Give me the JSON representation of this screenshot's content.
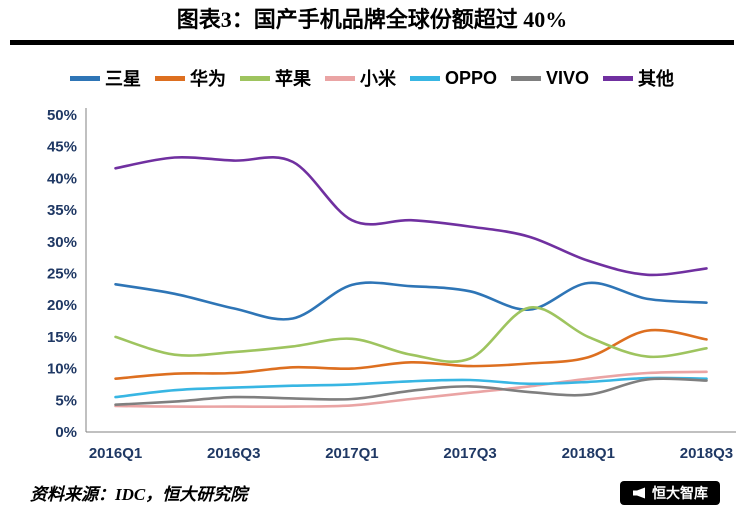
{
  "header": {
    "title": "图表3：国产手机品牌全球份额超过 40%"
  },
  "chart_data": {
    "type": "line",
    "title": "图表3：国产手机品牌全球份额超过 40%",
    "x": [
      "2016Q1",
      "2016Q2",
      "2016Q3",
      "2016Q4",
      "2017Q1",
      "2017Q2",
      "2017Q3",
      "2017Q4",
      "2018Q1",
      "2018Q2",
      "2018Q3"
    ],
    "x_tick_step": 2,
    "ylim": [
      0,
      50
    ],
    "y_tick_step": 5,
    "y_tick_suffix": "%",
    "grid": false,
    "legend_position": "top",
    "axis_label_color": "#1F3864",
    "series": [
      {
        "key": "samsung",
        "name": "三星",
        "color": "#2E75B6",
        "values": [
          23.3,
          21.8,
          19.5,
          17.9,
          23.2,
          23.0,
          22.2,
          19.3,
          23.5,
          21.0,
          20.4
        ]
      },
      {
        "key": "huawei",
        "name": "华为",
        "color": "#DD6F20",
        "values": [
          8.4,
          9.2,
          9.3,
          10.2,
          10.0,
          11.0,
          10.4,
          10.8,
          11.8,
          16.0,
          14.6
        ]
      },
      {
        "key": "apple",
        "name": "苹果",
        "color": "#9EC45F",
        "values": [
          15.0,
          12.2,
          12.6,
          13.5,
          14.7,
          12.2,
          11.6,
          19.6,
          15.0,
          11.9,
          13.2
        ]
      },
      {
        "key": "xiaomi",
        "name": "小米",
        "color": "#EAA4A4",
        "values": [
          4.1,
          4.0,
          4.0,
          4.0,
          4.2,
          5.2,
          6.2,
          7.2,
          8.4,
          9.3,
          9.5
        ]
      },
      {
        "key": "oppo",
        "name": "OPPO",
        "color": "#38B6E3",
        "values": [
          5.5,
          6.6,
          7.0,
          7.3,
          7.5,
          8.0,
          8.2,
          7.6,
          7.9,
          8.5,
          8.4
        ]
      },
      {
        "key": "vivo",
        "name": "VIVO",
        "color": "#7F7F7F",
        "values": [
          4.3,
          4.8,
          5.5,
          5.3,
          5.2,
          6.5,
          7.2,
          6.3,
          5.9,
          8.3,
          8.1
        ]
      },
      {
        "key": "other",
        "name": "其他",
        "color": "#7030A0",
        "values": [
          41.6,
          43.3,
          42.8,
          42.6,
          33.4,
          33.4,
          32.4,
          30.8,
          27.0,
          24.8,
          25.8
        ]
      }
    ]
  },
  "footer": {
    "source": "资料来源：IDC，恒大研究院",
    "badge_label": "恒大智库"
  }
}
